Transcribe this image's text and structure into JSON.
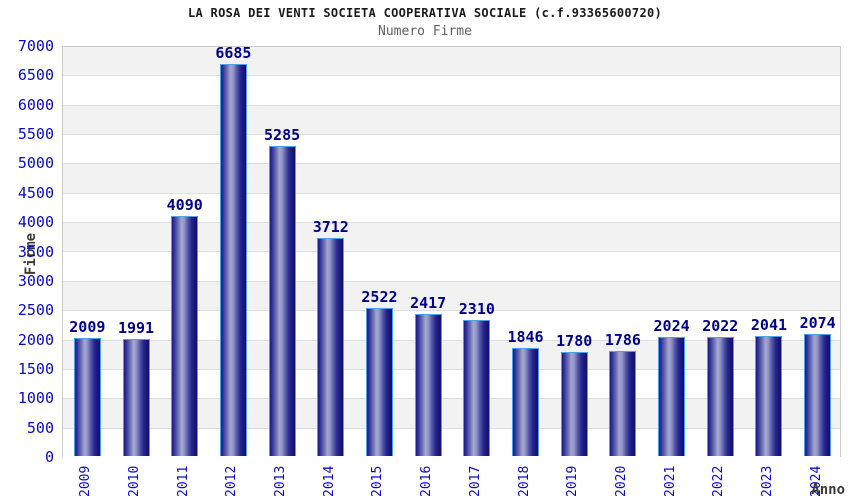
{
  "title": "LA ROSA DEI VENTI SOCIETA COOPERATIVA SOCIALE (c.f.93365600720)",
  "subtitle": "Numero Firme",
  "chart_data": {
    "type": "bar",
    "title": "LA ROSA DEI VENTI SOCIETA COOPERATIVA SOCIALE (c.f.93365600720)",
    "subtitle": "Numero Firme",
    "xlabel": "Anno",
    "ylabel": "Firme",
    "categories": [
      "2009",
      "2010",
      "2011",
      "2012",
      "2013",
      "2014",
      "2015",
      "2016",
      "2017",
      "2018",
      "2019",
      "2020",
      "2021",
      "2022",
      "2023",
      "2024"
    ],
    "values": [
      2009,
      1991,
      4090,
      6685,
      5285,
      3712,
      2522,
      2417,
      2310,
      1846,
      1780,
      1786,
      2024,
      2022,
      2041,
      2074
    ],
    "ylim": [
      0,
      7000
    ],
    "ytick_step": 500,
    "yticks": [
      0,
      500,
      1000,
      1500,
      2000,
      2500,
      3000,
      3500,
      4000,
      4500,
      5000,
      5500,
      6000,
      6500,
      7000
    ],
    "grid": "horizontal alternating bands",
    "legend_position": "none",
    "value_labels_shown": true
  },
  "colors": {
    "background": "#ffffff",
    "title_text": "#1a1a1a",
    "subtitle_text": "#5f5f5f",
    "tick_label": "#0909cc",
    "value_label": "#00008c",
    "axis_title": "#3a3a3a",
    "bar_dark": "#1b1b86",
    "bar_light": "#a4a7d0",
    "bar_border": "#4aa0ec",
    "band_gray": "#f2f2f3",
    "band_white": "#ffffff",
    "gridline": "#dedede",
    "plot_border": "#cccccc"
  }
}
